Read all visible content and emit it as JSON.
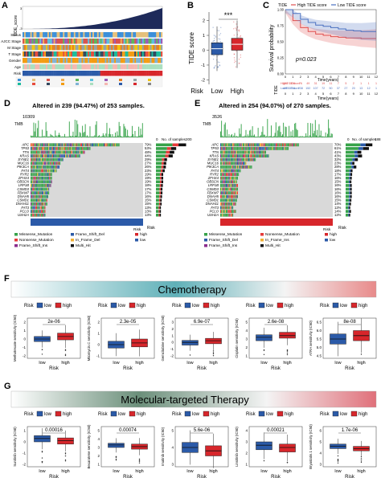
{
  "panels": {
    "A": {
      "letter": "A",
      "y_axis_label": "TIDE_score",
      "tick_top": "3",
      "tick_bottom": "-3",
      "row_labels": [
        "Status",
        "AJCC Stage",
        "M Stage",
        "T Stage",
        "Gender",
        "Age",
        "Risk"
      ]
    },
    "B": {
      "letter": "B",
      "ylabel": "TIDE score",
      "xlabel": "Risk",
      "groups": [
        "Low",
        "High"
      ],
      "significance": "***",
      "ticks": [
        "2",
        "1",
        "0",
        "-1",
        "-2"
      ]
    },
    "C": {
      "letter": "C",
      "legend_title": "TIDE",
      "legend_high": "High TIDE score",
      "legend_low": "Low TIDE score",
      "ylabel": "Survival probability",
      "xlabel": "Time(years)",
      "p_value": "p=0.023",
      "yticks": [
        "1.00",
        "0.75",
        "0.50",
        "0.25",
        "0.00"
      ],
      "xticks": [
        "0",
        "1",
        "2",
        "3",
        "4",
        "5",
        "6",
        "7",
        "8",
        "9",
        "10",
        "11",
        "12"
      ],
      "risk_table_title": "TIDE",
      "risk_high_label": "HighTIDEscore",
      "risk_low_label": "LowTIDEscore",
      "risk_high_counts": [
        "158",
        "129",
        "76",
        "49",
        "31",
        "19",
        "11",
        "7",
        "5",
        "2",
        "1",
        "1",
        "1"
      ],
      "risk_low_counts": [
        "400",
        "374",
        "238",
        "152",
        "107",
        "72",
        "50",
        "37",
        "27",
        "20",
        "13",
        "12",
        "1"
      ],
      "risk_xlabel": "Time(years)"
    },
    "D": {
      "letter": "D",
      "title": "Altered in 239 (94.47%) of 253 samples.",
      "tmb_label": "TMB",
      "tmb_max": "10309",
      "samples_axis_label": "No. of samples",
      "samples_ticks": [
        "0",
        "200"
      ],
      "genes": [
        "APC",
        "TP53",
        "TTN",
        "KRAS",
        "SYNE1",
        "MUC16",
        "PIK3CA",
        "FAT4",
        "RYR2",
        "ZFHX4",
        "OBSCN",
        "LRP1B",
        "CSMD3",
        "FBXW7",
        "DNAH5",
        "CSMD1",
        "DNAH11",
        "FAT3",
        "PCLO",
        "USH2A"
      ],
      "percents": [
        "79%",
        "53%",
        "48%",
        "44%",
        "29%",
        "27%",
        "26%",
        "23%",
        "19%",
        "19%",
        "19%",
        "18%",
        "17%",
        "17%",
        "16%",
        "15%",
        "15%",
        "13%",
        "13%",
        "13%"
      ],
      "risk_group_label": "Risk",
      "legend_items": [
        "Missense_Mutation",
        "Frame_Shift_Del",
        "Nonsense_Mutation",
        "In_Frame_Del",
        "Frame_Shift_Ins",
        "Multi_Hit"
      ],
      "risk_legend": [
        "high",
        "low"
      ]
    },
    "E": {
      "letter": "E",
      "title": "Altered in 254 (94.07%) of 270 samples.",
      "tmb_label": "TMB",
      "tmb_max": "3526",
      "samples_axis_label": "No. of samples",
      "samples_ticks": [
        "0",
        "188"
      ],
      "genes": [
        "APC",
        "TP53",
        "TTN",
        "KRAS",
        "SYNE1",
        "MUC16",
        "PIK3CA",
        "FAT4",
        "RYR2",
        "ZFHX4",
        "OBSCN",
        "LRP1B",
        "CSMD3",
        "FBXW7",
        "DNAH5",
        "CSMD1",
        "DNAH11",
        "FAT3",
        "PCLO",
        "USH2A"
      ],
      "percents": [
        "70%",
        "61%",
        "41%",
        "43%",
        "32%",
        "23%",
        "28%",
        "18%",
        "17%",
        "16%",
        "15%",
        "16%",
        "16%",
        "16%",
        "16%",
        "15%",
        "14%",
        "12%",
        "14%",
        "12%"
      ],
      "risk_group_label": "Risk",
      "legend_items": [
        "Missense_Mutation",
        "Nonsense_Mutation",
        "Frame_Shift_Del",
        "In_Frame_Ins",
        "Frame_Shift_Ins",
        "Multi_Hit"
      ],
      "risk_legend": [
        "high",
        "low"
      ]
    },
    "F": {
      "letter": "F",
      "banner": "Chemotherapy",
      "risk_label": "Risk",
      "legend_low": "low",
      "legend_high": "high",
      "xlabel": "Risk"
    },
    "G": {
      "letter": "G",
      "banner": "Molecular-targeted Therapy",
      "risk_label": "Risk",
      "legend_low": "low",
      "legend_high": "high",
      "xlabel": "Risk"
    }
  },
  "colors": {
    "low": "#2b5aa8",
    "high": "#d7262b",
    "missense": "#37a34a",
    "nonsense": "#e63a3a",
    "frameshift_del": "#2b5aa8",
    "frameshift_ins": "#8b2c8d",
    "inframe": "#f2b134",
    "multihit": "#111111",
    "tide_high": "#e05050",
    "tide_low": "#4a70c0"
  },
  "chart_data": [
    {
      "type": "box",
      "panel": "B",
      "ylabel": "TIDE score",
      "xlabel": "Risk",
      "categories": [
        "Low",
        "High"
      ],
      "series": [
        {
          "name": "Low",
          "q1": -0.3,
          "median": 0.1,
          "q3": 0.5,
          "min": -1.4,
          "max": 1.6
        },
        {
          "name": "High",
          "q1": 0.0,
          "median": 0.4,
          "q3": 0.8,
          "min": -1.2,
          "max": 2.0
        }
      ],
      "ylim": [
        -2.3,
        2.3
      ],
      "annotation": "***"
    },
    {
      "type": "line",
      "panel": "C",
      "ylabel": "Survival probability",
      "xlabel": "Time(years)",
      "series": [
        {
          "name": "High TIDE score",
          "x": [
            0,
            1,
            2,
            3,
            4,
            5,
            6,
            7,
            8,
            9,
            10,
            11,
            12
          ],
          "y": [
            1.0,
            0.83,
            0.72,
            0.66,
            0.62,
            0.6,
            0.58,
            0.57,
            0.56,
            0.56,
            0.55,
            0.55,
            0.55
          ]
        },
        {
          "name": "Low TIDE score",
          "x": [
            0,
            1,
            2,
            3,
            4,
            5,
            6,
            7,
            8,
            9,
            10,
            11,
            12
          ],
          "y": [
            1.0,
            0.94,
            0.85,
            0.8,
            0.76,
            0.74,
            0.72,
            0.7,
            0.68,
            0.67,
            0.66,
            0.66,
            0.66
          ]
        }
      ],
      "xlim": [
        0,
        12
      ],
      "ylim": [
        0,
        1.0
      ],
      "annotation": "p=0.023"
    },
    {
      "type": "bar",
      "panel": "D",
      "title": "Altered in 239 (94.47%) of 253 samples.",
      "categories": [
        "APC",
        "TP53",
        "TTN",
        "KRAS",
        "SYNE1",
        "MUC16",
        "PIK3CA",
        "FAT4",
        "RYR2",
        "ZFHX4",
        "OBSCN",
        "LRP1B",
        "CSMD3",
        "FBXW7",
        "DNAH5",
        "CSMD1",
        "DNAH11",
        "FAT3",
        "PCLO",
        "USH2A"
      ],
      "values": [
        79,
        53,
        48,
        44,
        29,
        27,
        26,
        23,
        19,
        19,
        19,
        18,
        17,
        17,
        16,
        15,
        15,
        13,
        13,
        13
      ]
    },
    {
      "type": "bar",
      "panel": "E",
      "title": "Altered in 254 (94.07%) of 270 samples.",
      "categories": [
        "APC",
        "TP53",
        "TTN",
        "KRAS",
        "SYNE1",
        "MUC16",
        "PIK3CA",
        "FAT4",
        "RYR2",
        "ZFHX4",
        "OBSCN",
        "LRP1B",
        "CSMD3",
        "FBXW7",
        "DNAH5",
        "CSMD1",
        "DNAH11",
        "FAT3",
        "PCLO",
        "USH2A"
      ],
      "values": [
        70,
        61,
        41,
        43,
        32,
        23,
        28,
        18,
        17,
        16,
        15,
        16,
        16,
        16,
        16,
        15,
        14,
        12,
        14,
        12
      ]
    },
    {
      "type": "box",
      "panel": "F",
      "plots": [
        {
          "ylabel": "Methotrexate sensitivity (IC50)",
          "pvalue": "2e-06",
          "yticks": [
            "2",
            "1",
            "0",
            "-1",
            "-2"
          ],
          "low": {
            "q1": -0.3,
            "median": 0.0,
            "q3": 0.3
          },
          "high": {
            "q1": -0.1,
            "median": 0.3,
            "q3": 0.7
          }
        },
        {
          "ylabel": "Mitomycin.C sensitivity (IC50)",
          "pvalue": "2.3e-05",
          "yticks": [
            "2",
            "1",
            "0",
            "-1"
          ],
          "low": {
            "q1": -0.3,
            "median": 0.0,
            "q3": 0.3
          },
          "high": {
            "q1": -0.2,
            "median": 0.15,
            "q3": 0.5
          }
        },
        {
          "ylabel": "Gemcitabine sensitivity (IC50)",
          "pvalue": "6.9e-07",
          "yticks": [
            "3",
            "2",
            "1",
            "0",
            "-1",
            "-2"
          ],
          "low": {
            "q1": -0.4,
            "median": 0.0,
            "q3": 0.3
          },
          "high": {
            "q1": -0.2,
            "median": 0.25,
            "q3": 0.6
          }
        },
        {
          "ylabel": "Cisplatin sensitivity (IC50)",
          "pvalue": "2.6e-08",
          "yticks": [
            "5",
            "4",
            "3",
            "2",
            "1"
          ],
          "low": {
            "q1": 2.8,
            "median": 3.2,
            "q3": 3.5
          },
          "high": {
            "q1": 3.1,
            "median": 3.4,
            "q3": 3.8
          }
        },
        {
          "ylabel": "ATRA sensitivity (IC50)",
          "pvalue": "8e-08",
          "yticks": [
            "6.5",
            "6.0",
            "5.5",
            "5.0",
            "4.5"
          ],
          "low": {
            "q1": 5.2,
            "median": 5.5,
            "q3": 5.8
          },
          "high": {
            "q1": 5.4,
            "median": 5.7,
            "q3": 6.0
          }
        }
      ]
    },
    {
      "type": "box",
      "panel": "G",
      "plots": [
        {
          "ylabel": "Sunitinib sensitivity (IC50)",
          "pvalue": "0.00016",
          "yticks": [
            "1",
            "0",
            "-1",
            "-2"
          ],
          "low": {
            "q1": 0.0,
            "median": 0.3,
            "q3": 0.55
          },
          "high": {
            "q1": -0.2,
            "median": 0.1,
            "q3": 0.35
          }
        },
        {
          "ylabel": "Bexarotene sensitivity (IC50)",
          "pvalue": "0.00074",
          "yticks": [
            "5",
            "4",
            "3",
            "2",
            "1"
          ],
          "low": {
            "q1": 3.0,
            "median": 3.3,
            "q3": 3.5
          },
          "high": {
            "q1": 2.8,
            "median": 3.1,
            "q3": 3.4
          }
        },
        {
          "ylabel": "Imatinib sensitivity (IC50)",
          "pvalue": "5.6e-06",
          "yticks": [
            "5",
            "4",
            "3"
          ],
          "low": {
            "q1": 3.7,
            "median": 4.0,
            "q3": 4.3
          },
          "high": {
            "q1": 3.5,
            "median": 3.8,
            "q3": 4.1
          }
        },
        {
          "ylabel": "Linsitinib sensitivity (IC50)",
          "pvalue": "0.00021",
          "yticks": [
            "4",
            "3",
            "2",
            "1"
          ],
          "low": {
            "q1": 2.3,
            "median": 2.7,
            "q3": 3.0
          },
          "high": {
            "q1": 2.1,
            "median": 2.5,
            "q3": 2.8
          }
        },
        {
          "ylabel": "Bryostatin.1 sensitivity (IC50)",
          "pvalue": "1.7e-06",
          "yticks": [
            "6",
            "5",
            "4",
            "3"
          ],
          "low": {
            "q1": 4.4,
            "median": 4.6,
            "q3": 4.8
          },
          "high": {
            "q1": 4.2,
            "median": 4.4,
            "q3": 4.6
          }
        }
      ]
    }
  ]
}
